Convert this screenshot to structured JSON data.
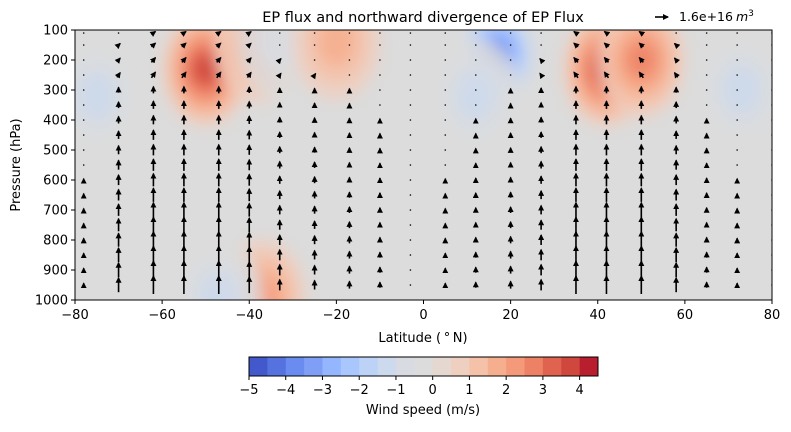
{
  "chart_data": {
    "type": "heatmap",
    "title": "EP flux and northward divergence of EP Flux",
    "xlabel": "Latitude ($^\\circ$N)",
    "xlabel_display": "Latitude ( ° N)",
    "ylabel": "Pressure (hPa)",
    "xlim": [
      -80,
      80
    ],
    "ylim": [
      1000,
      100
    ],
    "x_ticks": [
      -80,
      -60,
      -40,
      -20,
      0,
      20,
      40,
      60,
      80
    ],
    "x_tick_labels": [
      "−80",
      "−60",
      "−40",
      "−20",
      "0",
      "20",
      "40",
      "60",
      "80"
    ],
    "y_ticks": [
      100,
      200,
      300,
      400,
      500,
      600,
      700,
      800,
      900,
      1000
    ],
    "y_tick_labels": [
      "100",
      "200",
      "300",
      "400",
      "500",
      "600",
      "700",
      "800",
      "900",
      "1000"
    ],
    "quiver_key": {
      "label": "1.6e+16",
      "unit": "m",
      "exponent": "3"
    },
    "colorbar": {
      "label": "Wind speed (m/s)",
      "levels": [
        -5,
        -4.5,
        -4,
        -3.5,
        -3,
        -2.5,
        -2,
        -1.5,
        -1,
        -0.5,
        0,
        0.5,
        1,
        1.5,
        2,
        2.5,
        3,
        3.5,
        4,
        4.5
      ],
      "ticks": [
        -5,
        -4,
        -3,
        -2,
        -1,
        0,
        1,
        2,
        3,
        4
      ],
      "tick_labels": [
        "−5",
        "−4",
        "−3",
        "−2",
        "−1",
        "0",
        "1",
        "2",
        "3",
        "4"
      ],
      "colors": [
        "#4358cb",
        "#5572df",
        "#6a8bef",
        "#7f9ff6",
        "#94b6ff",
        "#aac7fd",
        "#bcd2f7",
        "#cdd9ec",
        "#d8dce2",
        "#dcdcdc",
        "#e5d8d1",
        "#efcfbf",
        "#f5c1a9",
        "#f6af8e",
        "#f49a7b",
        "#ec8165",
        "#df634e",
        "#d0473d",
        "#b91e2f"
      ]
    },
    "field_features": [
      {
        "lat": -50,
        "p": 230,
        "value": 3.3
      },
      {
        "lat": -38,
        "p": 150,
        "value": 2.2
      },
      {
        "lat": -75,
        "p": 320,
        "value": -1.5
      },
      {
        "lat": -33,
        "p": 130,
        "value": -1.2
      },
      {
        "lat": -20,
        "p": 140,
        "value": 1.3
      },
      {
        "lat": 17,
        "p": 180,
        "value": -4.2
      },
      {
        "lat": 12,
        "p": 320,
        "value": -1.5
      },
      {
        "lat": 42,
        "p": 230,
        "value": 3.6
      },
      {
        "lat": 50,
        "p": 200,
        "value": 2.6
      },
      {
        "lat": 73,
        "p": 300,
        "value": -1.4
      },
      {
        "lat": -37,
        "p": 990,
        "value": 2.0
      },
      {
        "lat": -47,
        "p": 990,
        "value": -1.5
      }
    ],
    "arrow_columns": [
      {
        "lat": -78,
        "strength": 0.2
      },
      {
        "lat": -70,
        "strength": 0.8
      },
      {
        "lat": -62,
        "strength": 1.0
      },
      {
        "lat": -55,
        "strength": 1.0
      },
      {
        "lat": -47,
        "strength": 1.0
      },
      {
        "lat": -40,
        "strength": 0.9
      },
      {
        "lat": -33,
        "strength": 0.6
      },
      {
        "lat": -25,
        "strength": 0.5
      },
      {
        "lat": -17,
        "strength": 0.4
      },
      {
        "lat": -10,
        "strength": 0.3
      },
      {
        "lat": -3,
        "strength": 0.1
      },
      {
        "lat": 5,
        "strength": 0.2
      },
      {
        "lat": 12,
        "strength": 0.3
      },
      {
        "lat": 20,
        "strength": 0.4
      },
      {
        "lat": 27,
        "strength": 0.6
      },
      {
        "lat": 35,
        "strength": 1.0
      },
      {
        "lat": 42,
        "strength": 1.0
      },
      {
        "lat": 50,
        "strength": 1.0
      },
      {
        "lat": 58,
        "strength": 0.8
      },
      {
        "lat": 65,
        "strength": 0.3
      },
      {
        "lat": 72,
        "strength": 0.2
      },
      {
        "lat": 80,
        "strength": 0.1
      }
    ]
  }
}
